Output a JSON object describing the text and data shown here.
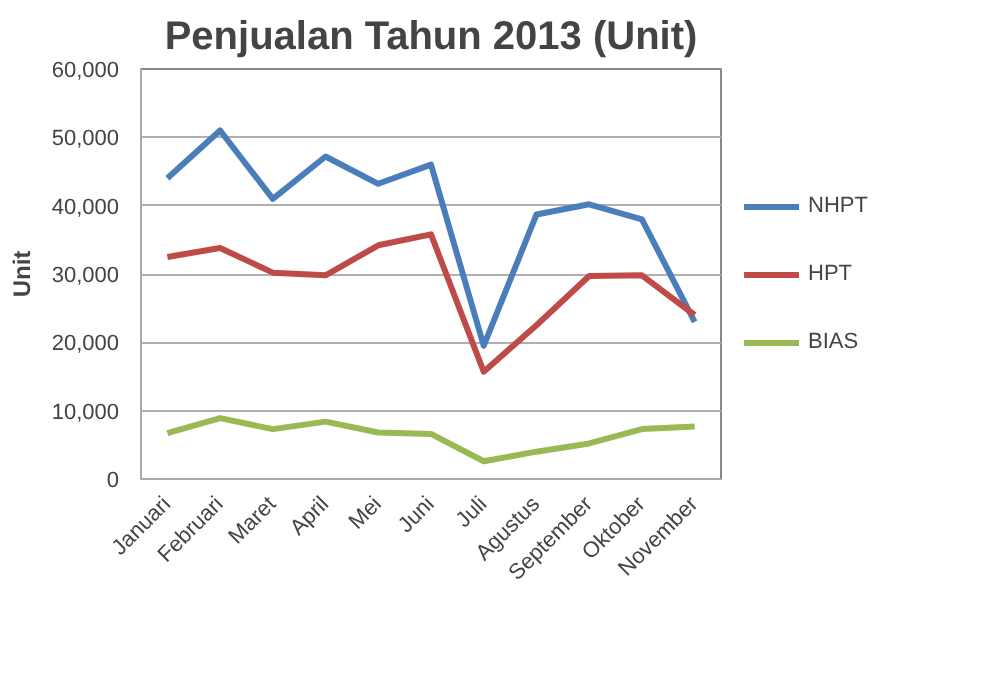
{
  "chart_data": {
    "type": "line",
    "title": "Penjualan Tahun 2013 (Unit)",
    "ylabel": "Unit",
    "categories": [
      "Januari",
      "Februari",
      "Maret",
      "April",
      "Mei",
      "Juni",
      "Juli",
      "Agustus",
      "September",
      "Oktober",
      "November"
    ],
    "series": [
      {
        "name": "NHPT",
        "color": "#4a7ebb",
        "values": [
          44000,
          51000,
          41000,
          47200,
          43200,
          46000,
          19500,
          38700,
          40200,
          38000,
          23000
        ]
      },
      {
        "name": "HPT",
        "color": "#be4b48",
        "values": [
          32500,
          33800,
          30200,
          29800,
          34200,
          35800,
          15700,
          22500,
          29700,
          29800,
          24000
        ]
      },
      {
        "name": "BIAS",
        "color": "#98b954",
        "values": [
          6700,
          8900,
          7300,
          8400,
          6800,
          6600,
          2600,
          4000,
          5200,
          7300,
          7700
        ]
      }
    ],
    "ylim": [
      0,
      60000
    ],
    "yticks": [
      {
        "value": 0,
        "label": "0"
      },
      {
        "value": 10000,
        "label": "10,000"
      },
      {
        "value": 20000,
        "label": "20,000"
      },
      {
        "value": 30000,
        "label": "30,000"
      },
      {
        "value": 40000,
        "label": "40,000"
      },
      {
        "value": 50000,
        "label": "50,000"
      },
      {
        "value": 60000,
        "label": "60,000"
      }
    ],
    "grid": "y",
    "legend": "right",
    "marker": "none",
    "line_style": "solid"
  }
}
